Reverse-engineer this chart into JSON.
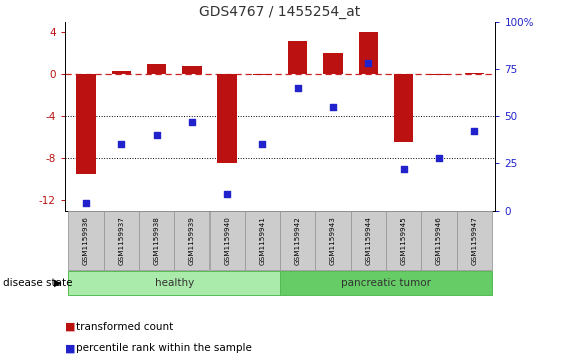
{
  "title": "GDS4767 / 1455254_at",
  "samples": [
    "GSM1159936",
    "GSM1159937",
    "GSM1159938",
    "GSM1159939",
    "GSM1159940",
    "GSM1159941",
    "GSM1159942",
    "GSM1159943",
    "GSM1159944",
    "GSM1159945",
    "GSM1159946",
    "GSM1159947"
  ],
  "transformed_count": [
    -9.5,
    0.3,
    1.0,
    0.8,
    -8.5,
    -0.1,
    3.2,
    2.0,
    4.0,
    -6.5,
    -0.1,
    0.1
  ],
  "percentile": [
    4,
    35,
    40,
    47,
    9,
    35,
    65,
    55,
    78,
    22,
    28,
    42
  ],
  "healthy_count": 6,
  "bar_color": "#bb1111",
  "dot_color": "#2222cc",
  "dashed_line_color": "#cc2222",
  "ylim_left": [
    -13,
    5
  ],
  "ylim_right": [
    0,
    100
  ],
  "yticks_left": [
    4,
    0,
    -4,
    -8,
    -12
  ],
  "yticks_right": [
    100,
    75,
    50,
    25,
    0
  ],
  "healthy_color": "#aaeaaa",
  "tumor_color": "#66cc66",
  "tick_box_color": "#cccccc",
  "disease_state_label": "disease state",
  "healthy_label": "healthy",
  "tumor_label": "pancreatic tumor",
  "legend_transformed": "transformed count",
  "legend_percentile": "percentile rank within the sample",
  "bar_width": 0.55
}
